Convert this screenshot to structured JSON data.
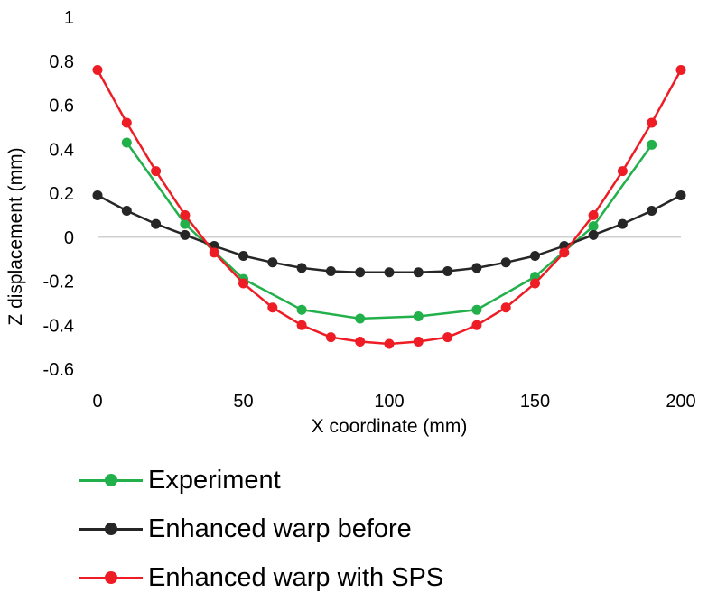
{
  "chart_data": {
    "type": "line",
    "title": "",
    "xlabel": "X coordinate (mm)",
    "ylabel": "Z displacement (mm)",
    "xlim": [
      0,
      200
    ],
    "ylim": [
      -0.6,
      1
    ],
    "xticks": [
      0,
      50,
      100,
      150,
      200
    ],
    "yticks": [
      1,
      0.8,
      0.6,
      0.4,
      0.2,
      0,
      -0.2,
      -0.4,
      -0.6
    ],
    "ytick_labels": [
      "1",
      "0.8",
      "0.6",
      "0.4",
      "0.2",
      "0",
      "-0.2",
      "-0.4",
      "-0.6"
    ],
    "grid": false,
    "legend_position": "bottom",
    "series": [
      {
        "name": "Experiment",
        "color": "#22b04b",
        "x": [
          10,
          30,
          50,
          70,
          90,
          110,
          130,
          150,
          170,
          190
        ],
        "y": [
          0.43,
          0.06,
          -0.19,
          -0.33,
          -0.37,
          -0.36,
          -0.33,
          -0.18,
          0.05,
          0.42
        ]
      },
      {
        "name": "Enhanced warp before",
        "color": "#262626",
        "x": [
          0,
          10,
          20,
          30,
          40,
          50,
          60,
          70,
          80,
          90,
          100,
          110,
          120,
          130,
          140,
          150,
          160,
          170,
          180,
          190,
          200
        ],
        "y": [
          0.19,
          0.12,
          0.06,
          0.01,
          -0.04,
          -0.085,
          -0.115,
          -0.14,
          -0.155,
          -0.16,
          -0.16,
          -0.16,
          -0.155,
          -0.14,
          -0.115,
          -0.085,
          -0.04,
          0.01,
          0.06,
          0.12,
          0.19
        ]
      },
      {
        "name": "Enhanced warp with SPS",
        "color": "#ee1c25",
        "x": [
          0,
          10,
          20,
          30,
          40,
          50,
          60,
          70,
          80,
          90,
          100,
          110,
          120,
          130,
          140,
          150,
          160,
          170,
          180,
          190,
          200
        ],
        "y": [
          0.76,
          0.52,
          0.3,
          0.1,
          -0.07,
          -0.21,
          -0.32,
          -0.4,
          -0.455,
          -0.475,
          -0.485,
          -0.475,
          -0.455,
          -0.4,
          -0.32,
          -0.21,
          -0.07,
          0.1,
          0.3,
          0.52,
          0.76
        ]
      }
    ]
  }
}
